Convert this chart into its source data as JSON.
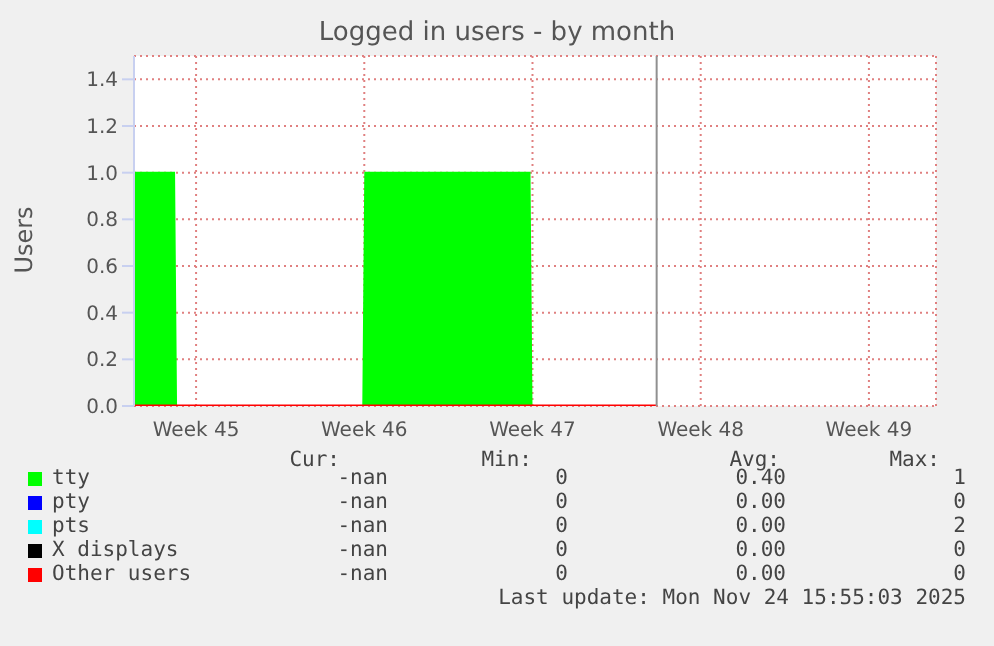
{
  "chart_data": {
    "type": "line",
    "title": "Logged in users - by month",
    "ylabel": "Users",
    "xlim": [
      "2025-11-02T22:00",
      "2025-12-06T07:00"
    ],
    "xticks": [
      {
        "value": "2025-11-05T12:00",
        "label": "Week 45"
      },
      {
        "value": "2025-11-12T12:00",
        "label": "Week 46"
      },
      {
        "value": "2025-11-19T12:00",
        "label": "Week 47"
      },
      {
        "value": "2025-11-26T12:00",
        "label": "Week 48"
      },
      {
        "value": "2025-12-03T12:00",
        "label": "Week 49"
      }
    ],
    "ylim": [
      0,
      1.5
    ],
    "yticks": [
      {
        "value": 0,
        "label": "0.0"
      },
      {
        "value": 0.2,
        "label": "0.2"
      },
      {
        "value": 0.4,
        "label": "0.4"
      },
      {
        "value": 0.6,
        "label": "0.6"
      },
      {
        "value": 0.8,
        "label": "0.8"
      },
      {
        "value": 1,
        "label": "1.0"
      },
      {
        "value": 1.2,
        "label": "1.2"
      },
      {
        "value": 1.4,
        "label": "1.4"
      }
    ],
    "grid": true,
    "legend": "bottom",
    "series": [
      {
        "name": "tty",
        "type": "area",
        "color": "#00ff00",
        "x": [
          "2025-11-02T22:00",
          "2025-11-04T14:00",
          "2025-11-04T16:00",
          "2025-11-12T11:00",
          "2025-11-12T13:00",
          "2025-11-19T09:00",
          "2025-11-19T11:00",
          "2025-11-24T16:00"
        ],
        "values": [
          1,
          1,
          0,
          0,
          1,
          1,
          0,
          0
        ]
      },
      {
        "name": "pty",
        "color": "#0000ff"
      },
      {
        "name": "pts",
        "color": "#00ffff"
      },
      {
        "name": "X displays",
        "color": "#000000"
      },
      {
        "name": "Other users",
        "color": "#ff0000",
        "x": [
          "2025-11-02T22:00",
          "2025-11-24T16:00"
        ],
        "values": [
          0,
          0
        ]
      }
    ],
    "ref_lines": [
      {
        "axis": "x",
        "value": "2025-11-24T16:00",
        "color": "#909090"
      }
    ],
    "annotations": [
      "Cur:",
      "Min:",
      "Avg:",
      "Max:",
      "-nan",
      "0",
      "0.40",
      "1",
      "-nan",
      "0",
      "0.00",
      "0",
      "-nan",
      "0",
      "0.00",
      "2",
      "-nan",
      "0",
      "0.00",
      "0",
      "-nan",
      "0",
      "0.00",
      "0",
      "Last update: Mon Nov 24 15:55:03 2025"
    ]
  }
}
